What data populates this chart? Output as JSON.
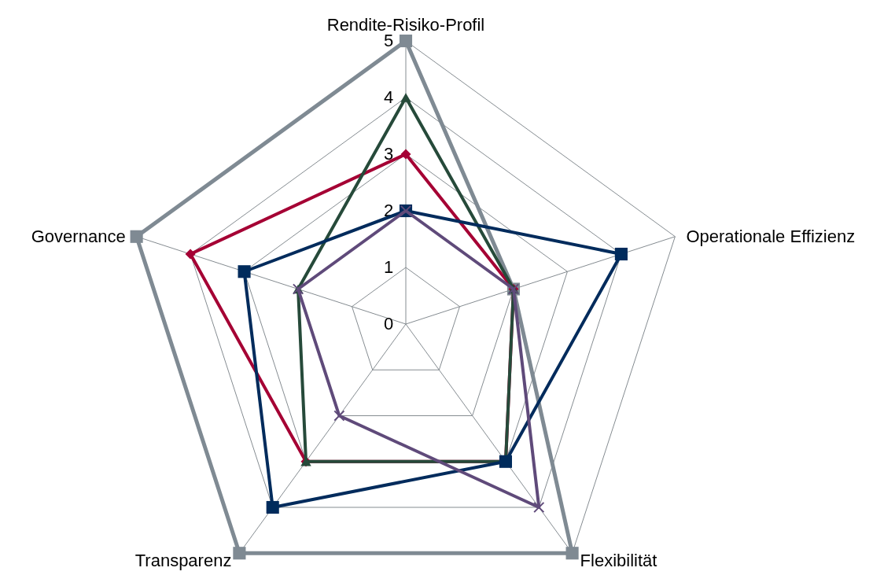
{
  "chart_data": {
    "type": "radar",
    "categories": [
      "Rendite-Risiko-Profil",
      "Operationale Effizienz",
      "Flexibilität",
      "Transparenz",
      "Governance"
    ],
    "ylim": [
      0,
      5
    ],
    "yticks": [
      0,
      1,
      2,
      3,
      4,
      5
    ],
    "grid": true,
    "series": [
      {
        "color": "#7f8a93",
        "marker": "square",
        "values": [
          5,
          2,
          5,
          5,
          5
        ]
      },
      {
        "color": "#a50034",
        "marker": "diamond",
        "values": [
          3,
          2,
          3,
          3,
          4
        ]
      },
      {
        "color": "#264a3a",
        "marker": "triangle",
        "values": [
          4,
          2,
          3,
          3,
          2
        ]
      },
      {
        "color": "#002b5c",
        "marker": "square",
        "values": [
          2,
          4,
          3,
          4,
          3
        ]
      },
      {
        "color": "#5f4a7a",
        "marker": "cross",
        "values": [
          2,
          2,
          4,
          2,
          2
        ]
      }
    ]
  }
}
